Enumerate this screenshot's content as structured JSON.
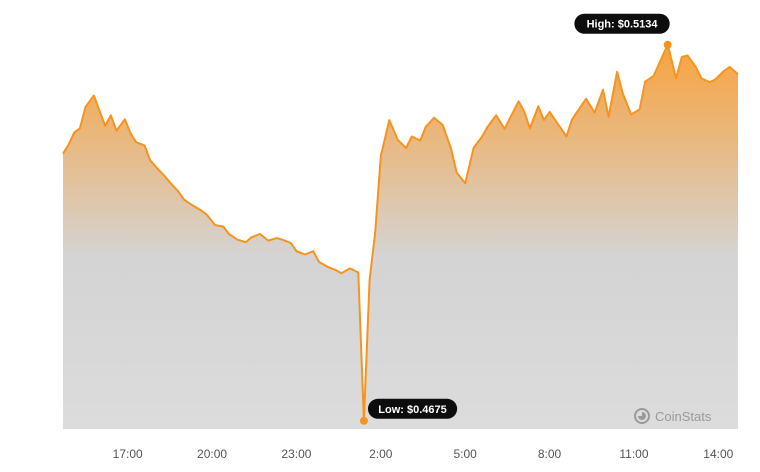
{
  "chart_data": {
    "type": "area",
    "title": "",
    "xlabel": "",
    "ylabel": "",
    "x_ticks": [
      "17:00",
      "20:00",
      "23:00",
      "2:00",
      "5:00",
      "8:00",
      "11:00",
      "14:00"
    ],
    "x_range_hours": [
      14.7,
      38.7
    ],
    "ylim": [
      0.4665,
      0.5152
    ],
    "series": [
      {
        "x": [
          14.7,
          14.9,
          15.1,
          15.3,
          15.5,
          15.8,
          16.0,
          16.2,
          16.4,
          16.6,
          16.9,
          17.1,
          17.3,
          17.6,
          17.8,
          18.0,
          18.3,
          18.5,
          18.8,
          19.0,
          19.3,
          19.6,
          19.8,
          20.1,
          20.4,
          20.6,
          20.9,
          21.2,
          21.4,
          21.7,
          22.0,
          22.3,
          22.5,
          22.8,
          23.0,
          23.3,
          23.6,
          23.8,
          24.1,
          24.4,
          24.6,
          24.9,
          25.2,
          25.4,
          25.6,
          25.8,
          26.0,
          26.3,
          26.6,
          26.9,
          27.1,
          27.4,
          27.6,
          27.9,
          28.2,
          28.5,
          28.7,
          29.0,
          29.3,
          29.6,
          29.8,
          30.1,
          30.4,
          30.6,
          30.9,
          31.1,
          31.3,
          31.6,
          31.8,
          32.0,
          32.3,
          32.6,
          32.8,
          33.1,
          33.3,
          33.6,
          33.9,
          34.1,
          34.4,
          34.6,
          34.9,
          35.2,
          35.4,
          35.7,
          36.0,
          36.2,
          36.5,
          36.7,
          36.9,
          37.2,
          37.4,
          37.7,
          37.9,
          38.2,
          38.4,
          38.7
        ],
        "y": [
          0.5001,
          0.5012,
          0.5027,
          0.5032,
          0.5058,
          0.5072,
          0.5053,
          0.5035,
          0.5048,
          0.5029,
          0.5043,
          0.5026,
          0.5015,
          0.5011,
          0.4993,
          0.4985,
          0.4974,
          0.4966,
          0.4955,
          0.4945,
          0.4938,
          0.4932,
          0.4927,
          0.4914,
          0.4912,
          0.4903,
          0.4896,
          0.4893,
          0.4899,
          0.4903,
          0.4895,
          0.4898,
          0.4896,
          0.4892,
          0.4882,
          0.4878,
          0.4882,
          0.4869,
          0.4863,
          0.4859,
          0.4855,
          0.4861,
          0.4856,
          0.4675,
          0.4847,
          0.4905,
          0.4998,
          0.5042,
          0.5018,
          0.5008,
          0.5022,
          0.5017,
          0.5034,
          0.5045,
          0.5036,
          0.5007,
          0.4978,
          0.4965,
          0.5008,
          0.5022,
          0.5034,
          0.5048,
          0.5031,
          0.5045,
          0.5065,
          0.5052,
          0.5032,
          0.5059,
          0.5042,
          0.5052,
          0.5037,
          0.5022,
          0.5043,
          0.5058,
          0.5068,
          0.5051,
          0.5079,
          0.5046,
          0.5101,
          0.5075,
          0.5049,
          0.5055,
          0.5089,
          0.5096,
          0.5119,
          0.5134,
          0.5093,
          0.5119,
          0.5121,
          0.5107,
          0.5093,
          0.5088,
          0.5092,
          0.5102,
          0.5107,
          0.5098
        ]
      }
    ],
    "annotations": [
      {
        "label": "High: $0.5134",
        "x": 36.2,
        "y": 0.5134
      },
      {
        "label": "Low: $0.4675",
        "x": 25.4,
        "y": 0.4675
      }
    ],
    "line_color": "#f7931e",
    "area_top_color": "#f7931e",
    "area_bottom_color": "#dcdcdc",
    "grid": false,
    "legend": "none"
  },
  "watermark": {
    "text": "CoinStats",
    "icon": "coinstats-logo-icon"
  }
}
